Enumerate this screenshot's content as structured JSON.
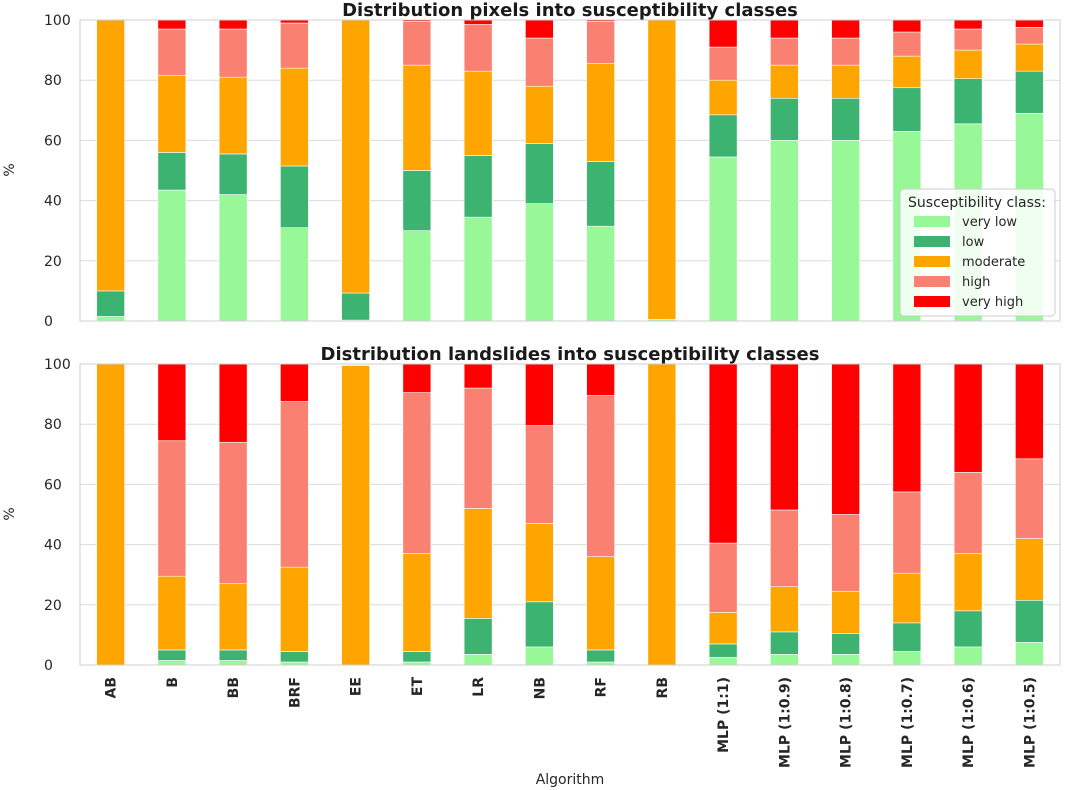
{
  "chart_data": [
    {
      "type": "bar",
      "stacked": true,
      "title": "Distribution pixels into susceptibility classes",
      "ylabel": "%",
      "xlabel": "",
      "ylim": [
        0,
        100
      ],
      "yticks": [
        0,
        20,
        40,
        60,
        80,
        100
      ],
      "grid": true,
      "categories": [
        "AB",
        "B",
        "BB",
        "BRF",
        "EE",
        "ET",
        "LR",
        "NB",
        "RF",
        "RB",
        "MLP (1:1)",
        "MLP (1:0.9)",
        "MLP (1:0.8)",
        "MLP (1:0.7)",
        "MLP (1:0.6)",
        "MLP (1:0.5)"
      ],
      "series": [
        {
          "name": "very low",
          "color": "#98f898",
          "values": [
            1.5,
            43.5,
            42,
            31,
            0.3,
            30,
            34.5,
            39,
            31.5,
            0.5,
            54.5,
            60,
            60,
            63,
            65.5,
            69
          ]
        },
        {
          "name": "low",
          "color": "#3cb371",
          "values": [
            8.5,
            12.5,
            13.5,
            20.5,
            9,
            20,
            20.5,
            20,
            21.5,
            0,
            14,
            14,
            14,
            14.5,
            15,
            14
          ]
        },
        {
          "name": "moderate",
          "color": "#ffa500",
          "values": [
            90,
            25.5,
            25.5,
            32.5,
            90.7,
            35,
            28,
            19,
            32.5,
            99.5,
            11.5,
            11,
            11,
            10.5,
            9.5,
            9
          ]
        },
        {
          "name": "high",
          "color": "#fa8072",
          "values": [
            0,
            15.5,
            16,
            15,
            0,
            14.5,
            15.5,
            16,
            14,
            0,
            11,
            9,
            9,
            8,
            7,
            5.5
          ]
        },
        {
          "name": "very high",
          "color": "#ff0000",
          "values": [
            0,
            3,
            3,
            1,
            0,
            0.5,
            1.5,
            6,
            0.5,
            0,
            9,
            6,
            6,
            4,
            3,
            2.5
          ]
        }
      ],
      "legend": {
        "title": "Susceptibility class:",
        "placement": "center-right",
        "entries": [
          "very low",
          "low",
          "moderate",
          "high",
          "very high"
        ]
      }
    },
    {
      "type": "bar",
      "stacked": true,
      "title": "Distribution landslides into susceptibility classes",
      "ylabel": "%",
      "xlabel": "Algorithm",
      "ylim": [
        0,
        100
      ],
      "yticks": [
        0,
        20,
        40,
        60,
        80,
        100
      ],
      "grid": true,
      "categories": [
        "AB",
        "B",
        "BB",
        "BRF",
        "EE",
        "ET",
        "LR",
        "NB",
        "RF",
        "RB",
        "MLP (1:1)",
        "MLP (1:0.9)",
        "MLP (1:0.8)",
        "MLP (1:0.7)",
        "MLP (1:0.6)",
        "MLP (1:0.5)"
      ],
      "series": [
        {
          "name": "very low",
          "color": "#98f898",
          "values": [
            0,
            1.5,
            1.5,
            1,
            0,
            1,
            3.5,
            6,
            1,
            0,
            2.5,
            3.5,
            3.5,
            4.5,
            6,
            7.5
          ]
        },
        {
          "name": "low",
          "color": "#3cb371",
          "values": [
            0,
            3.5,
            3.5,
            3.5,
            0,
            3.5,
            12,
            15,
            4,
            0,
            4.5,
            7.5,
            7,
            9.5,
            12,
            14
          ]
        },
        {
          "name": "moderate",
          "color": "#ffa500",
          "values": [
            100,
            24.5,
            22,
            28,
            99.5,
            32.5,
            36.5,
            26,
            31,
            100,
            10.5,
            15,
            14,
            16.5,
            19,
            20.5
          ]
        },
        {
          "name": "high",
          "color": "#fa8072",
          "values": [
            0,
            45,
            47,
            55,
            0,
            53.5,
            40,
            32.5,
            53.5,
            0,
            23,
            25.5,
            25.5,
            27,
            27,
            26.5
          ]
        },
        {
          "name": "very high",
          "color": "#ff0000",
          "values": [
            0,
            25.5,
            26,
            12.5,
            0,
            9.5,
            8,
            20.5,
            10.5,
            0,
            59.5,
            48.5,
            50,
            42.5,
            36,
            31.5
          ]
        }
      ]
    }
  ]
}
